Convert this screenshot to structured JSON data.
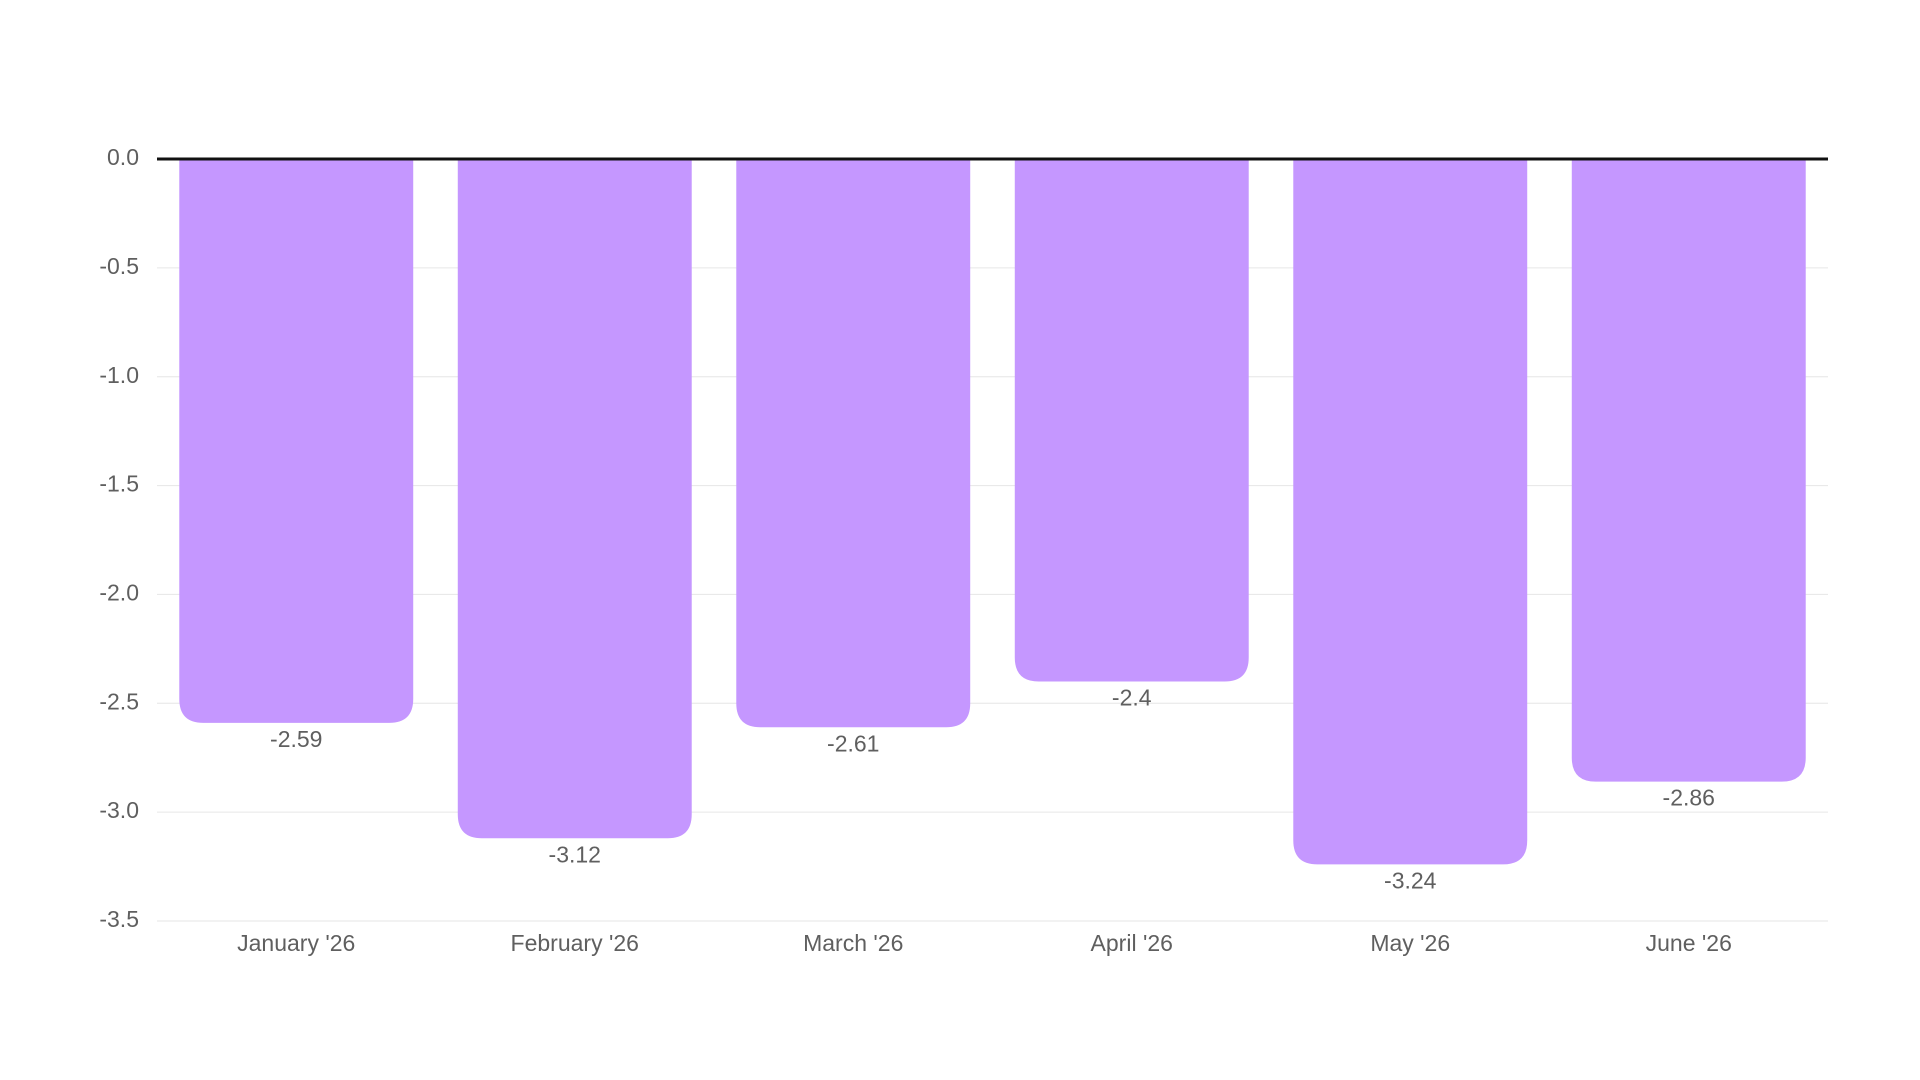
{
  "chart_data": {
    "type": "bar",
    "categories": [
      "January '26",
      "February '26",
      "March '26",
      "April '26",
      "May '26",
      "June '26"
    ],
    "values": [
      -2.59,
      -3.12,
      -2.61,
      -2.4,
      -3.24,
      -2.86
    ],
    "color": "#c597ff",
    "ylim": [
      -3.5,
      0
    ],
    "yticks": [
      {
        "value": 0,
        "label": "0.0"
      },
      -0.5,
      {
        "value": -1,
        "label": "-1.0"
      },
      -1.5,
      {
        "value": -2,
        "label": "-2.0"
      },
      -2.5,
      {
        "value": -3,
        "label": "-3.0"
      },
      -3.5
    ],
    "grid": true
  }
}
